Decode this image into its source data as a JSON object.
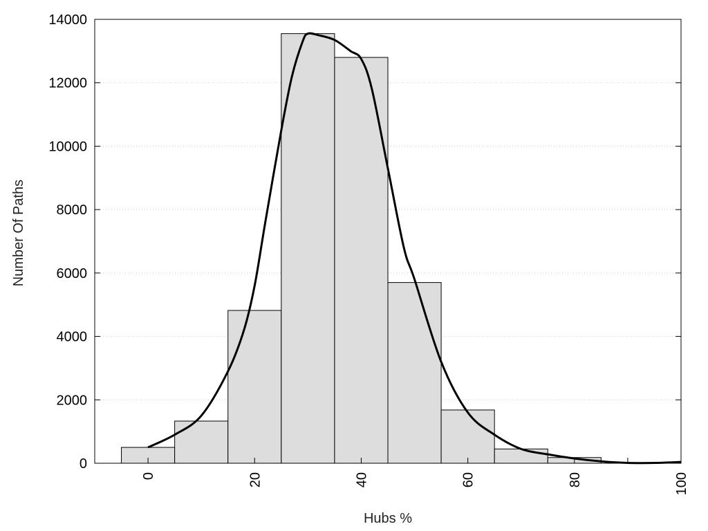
{
  "chart_data": {
    "type": "bar",
    "title": "",
    "xlabel": "Hubs %",
    "ylabel": "Number Of Paths",
    "xlim": [
      -10,
      100
    ],
    "ylim": [
      0,
      14000
    ],
    "x_ticks": [
      0,
      20,
      40,
      60,
      80,
      100
    ],
    "y_ticks": [
      0,
      2000,
      4000,
      6000,
      8000,
      10000,
      12000,
      14000
    ],
    "grid": "horizontal-dotted",
    "bin_width": 10,
    "bins": [
      {
        "x": 0,
        "value": 500
      },
      {
        "x": 10,
        "value": 1330
      },
      {
        "x": 20,
        "value": 4820
      },
      {
        "x": 30,
        "value": 13550
      },
      {
        "x": 40,
        "value": 12800
      },
      {
        "x": 50,
        "value": 5700
      },
      {
        "x": 60,
        "value": 1680
      },
      {
        "x": 70,
        "value": 450
      },
      {
        "x": 80,
        "value": 180
      },
      {
        "x": 90,
        "value": 0
      }
    ],
    "curve": {
      "type": "line",
      "x": [
        0,
        5,
        10,
        15,
        18,
        20,
        22,
        25,
        27,
        29,
        30,
        32,
        35,
        38,
        40,
        42,
        45,
        48,
        50,
        55,
        60,
        65,
        70,
        75,
        80,
        85,
        90,
        95,
        100
      ],
      "y": [
        500,
        900,
        1500,
        2900,
        4200,
        5600,
        7600,
        10500,
        12200,
        13300,
        13550,
        13500,
        13350,
        13000,
        12750,
        11800,
        9300,
        6800,
        5800,
        3200,
        1600,
        900,
        450,
        280,
        150,
        60,
        10,
        10,
        40
      ]
    },
    "colors": {
      "bar_fill": "#dddddd",
      "bar_stroke": "#000000",
      "curve": "#000000",
      "grid": "#c8c8c8"
    }
  }
}
